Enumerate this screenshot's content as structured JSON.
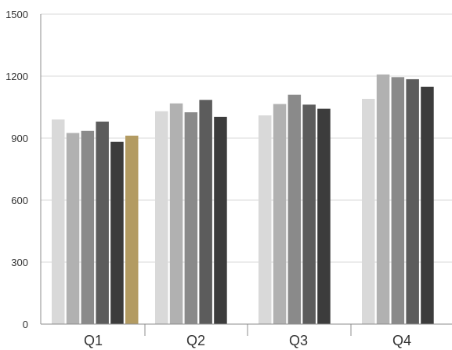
{
  "chart_data": {
    "type": "bar",
    "title": "",
    "xlabel": "",
    "ylabel": "",
    "categories": [
      "Q1",
      "Q2",
      "Q3",
      "Q4"
    ],
    "ylim": [
      0,
      1500
    ],
    "yticks": [
      0,
      300,
      600,
      900,
      1200,
      1500
    ],
    "grid": true,
    "legend": "none",
    "series": [
      {
        "values": [
          990,
          1030,
          1010,
          1090
        ],
        "color": "#d9d9d9"
      },
      {
        "values": [
          925,
          1068,
          1065,
          1208
        ],
        "color": "#b1b1b1"
      },
      {
        "values": [
          935,
          1025,
          1110,
          1195
        ],
        "color": "#8a8a8a"
      },
      {
        "values": [
          980,
          1085,
          1062,
          1185
        ],
        "color": "#5c5c5c"
      },
      {
        "values": [
          882,
          1003,
          1042,
          1148
        ],
        "color": "#3c3c3c"
      },
      {
        "values": [
          912,
          null,
          null,
          null
        ],
        "color": "#b39b62"
      }
    ],
    "bar_colors": {
      "Q1": [
        "#d9d9d9",
        "#b1b1b1",
        "#8a8a8a",
        "#5c5c5c",
        "#3c3c3c",
        "#b39b62"
      ],
      "Q2": [
        "#d9d9d9",
        "#b1b1b1",
        "#8a8a8a",
        "#5c5c5c",
        "#3c3c3c"
      ],
      "Q3": [
        "#d9d9d9",
        "#b1b1b1",
        "#8a8a8a",
        "#5c5c5c",
        "#3c3c3c"
      ],
      "Q4": [
        "#d9d9d9",
        "#b1b1b1",
        "#8a8a8a",
        "#5c5c5c",
        "#3c3c3c"
      ]
    },
    "gridline_color": "#d9d9d9",
    "axis_color": "#8c8c8c"
  }
}
